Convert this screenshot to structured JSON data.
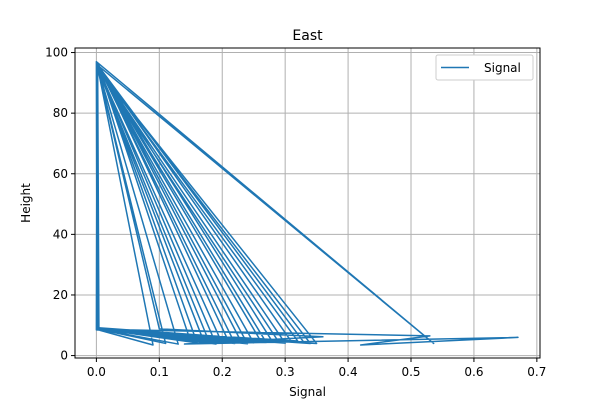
{
  "chart_data": {
    "type": "line",
    "title": "East",
    "xlabel": "Signal",
    "ylabel": "Height",
    "xlim": [
      -0.034,
      0.705
    ],
    "ylim": [
      -0.8,
      101.5
    ],
    "xticks": [
      0.0,
      0.1,
      0.2,
      0.3,
      0.4,
      0.5,
      0.6,
      0.7
    ],
    "xtick_labels": [
      "0.0",
      "0.1",
      "0.2",
      "0.3",
      "0.4",
      "0.5",
      "0.6",
      "0.7"
    ],
    "yticks": [
      0,
      20,
      40,
      60,
      80,
      100
    ],
    "ytick_labels": [
      "0",
      "20",
      "40",
      "60",
      "80",
      "100"
    ],
    "grid": true,
    "legend_position": "top-right",
    "series": [
      {
        "name": "Signal",
        "color": "#1f77b4",
        "x": [
          0.0,
          0.536,
          0.001,
          0.0,
          0.35,
          0.001,
          0.002,
          0.28,
          0.001,
          0.002,
          0.17,
          0.001,
          0.003,
          0.22,
          0.0,
          0.001,
          0.09,
          0.002,
          0.003,
          0.25,
          0.001,
          0.002,
          0.32,
          0.0,
          0.001,
          0.15,
          0.002,
          0.004,
          0.2,
          0.001,
          0.002,
          0.27,
          0.0,
          0.001,
          0.13,
          0.002,
          0.003,
          0.31,
          0.001,
          0.002,
          0.18,
          0.0,
          0.003,
          0.24,
          0.001,
          0.002,
          0.29,
          0.0,
          0.001,
          0.21,
          0.002,
          0.003,
          0.34,
          0.001,
          0.002,
          0.16,
          0.0,
          0.001,
          0.26,
          0.002,
          0.002,
          0.19,
          0.001,
          0.0,
          0.3,
          0.001,
          0.002,
          0.23,
          0.0,
          0.001,
          0.11,
          0.002,
          0.002,
          0.33,
          0.001,
          0.0,
          0.53,
          0.42,
          0.67,
          0.14,
          0.36,
          0.1,
          0.001
        ],
        "y": [
          97.0,
          4.0,
          96.0,
          8.5,
          4.0,
          95.0,
          9.0,
          4.5,
          96.5,
          8.5,
          5.0,
          95.5,
          9.0,
          4.0,
          96.8,
          8.6,
          3.5,
          95.2,
          9.1,
          4.2,
          96.0,
          8.8,
          4.8,
          95.8,
          8.9,
          4.5,
          96.2,
          9.0,
          4.0,
          95.6,
          8.7,
          4.3,
          96.4,
          8.8,
          3.8,
          95.1,
          9.2,
          4.6,
          96.1,
          8.9,
          4.1,
          95.9,
          8.7,
          3.9,
          96.3,
          8.8,
          4.4,
          95.4,
          9.0,
          4.7,
          96.6,
          8.7,
          4.0,
          95.3,
          8.9,
          4.2,
          96.9,
          8.6,
          5.2,
          95.7,
          8.8,
          3.8,
          96.0,
          8.7,
          4.1,
          95.5,
          8.9,
          4.6,
          96.7,
          8.8,
          4.0,
          95.0,
          8.9,
          4.3,
          96.2,
          8.7,
          6.5,
          3.5,
          6.0,
          3.8,
          6.2,
          8.8,
          96.0
        ]
      }
    ]
  }
}
